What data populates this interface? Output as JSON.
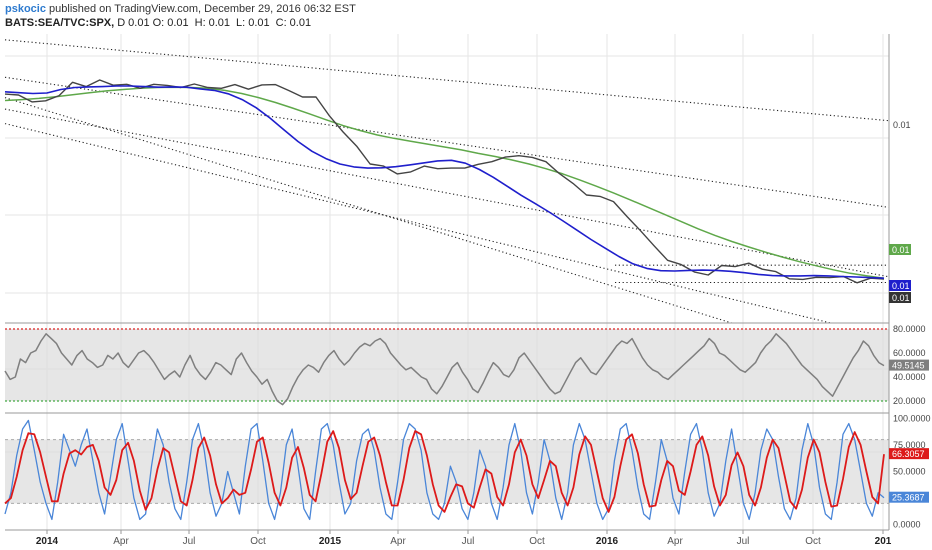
{
  "header": {
    "author": "pskocic",
    "published_text": "published on TradingView.com, December 29, 2016 06:32 EST",
    "symbol": "BATS:SEA/TVC:SPX,",
    "interval": "D",
    "o_label": "O:",
    "o_value": "0.01",
    "h_label": "H:",
    "h_value": "0.01",
    "l_label": "L:",
    "l_value": "0.01",
    "c_label": "C:",
    "c_value": "0.01",
    "open_value": "0.01"
  },
  "x_axis": {
    "labels": [
      "2014",
      "Apr",
      "Jul",
      "Oct",
      "2015",
      "Apr",
      "Jul",
      "Oct",
      "2016",
      "Apr",
      "Jul",
      "Oct",
      "201"
    ],
    "bold": [
      true,
      false,
      false,
      false,
      true,
      false,
      false,
      false,
      true,
      false,
      false,
      false,
      true
    ]
  },
  "colors": {
    "price": "#444444",
    "ma_fast": "#1f1fcc",
    "ma_slow": "#5fa84a",
    "rsi": "#7f7f7f",
    "stoch_k": "#4a86d8",
    "stoch_d": "#dd1a1a",
    "overbought_line": "#dd2222",
    "oversold_line": "#44aa44",
    "grid": "#e6e6e6",
    "band_fill": "#dcdcdc"
  },
  "chart_data": [
    {
      "type": "line",
      "panel": "price",
      "x_ticks": [
        "2014",
        "Apr",
        "Jul",
        "Oct",
        "2015",
        "Apr",
        "Jul",
        "Oct",
        "2016",
        "Apr",
        "Jul",
        "Oct",
        "201"
      ],
      "y_tick_labels": [
        "0.01"
      ],
      "value_badges": [
        {
          "text": "0.01",
          "color": "#5fa84a"
        },
        {
          "text": "0.01",
          "color": "#1f1fcc"
        },
        {
          "text": "0.01",
          "color": "#333333"
        }
      ],
      "series": [
        {
          "name": "price",
          "values": [
            79.2,
            78.9,
            76.5,
            76.9,
            78.7,
            83.3,
            81.8,
            84.1,
            82.3,
            82.6,
            81.2,
            82.6,
            82.2,
            81.5,
            82.7,
            81.5,
            81.2,
            82.5,
            80.9,
            82.4,
            82.5,
            80.4,
            78.2,
            78.2,
            71.6,
            66.1,
            61.2,
            55.0,
            54.3,
            51.6,
            52.3,
            54.3,
            53.4,
            53.6,
            53.6,
            54.9,
            55.8,
            57.4,
            57.9,
            57.3,
            55.8,
            51.7,
            48.3,
            44.3,
            43.8,
            42.0,
            36.8,
            31.9,
            26.7,
            21.7,
            20.2,
            17.6,
            16.6,
            19.9,
            19.5,
            20.7,
            18.6,
            17.8,
            15.3,
            15.1,
            15.8,
            15.7,
            16.1,
            13.9,
            15.5,
            15.2
          ]
        },
        {
          "name": "sma fast",
          "values": [
            80.0,
            79.7,
            79.4,
            79.6,
            80.8,
            81.5,
            81.7,
            81.8,
            82.0,
            82.0,
            81.8,
            81.6,
            81.7,
            81.6,
            81.0,
            80.5,
            79.3,
            77.3,
            74.5,
            70.9,
            66.8,
            62.8,
            59.4,
            56.9,
            55.0,
            54.0,
            53.6,
            53.7,
            54.1,
            54.7,
            55.4,
            56.1,
            56.3,
            55.3,
            53.1,
            50.4,
            47.3,
            44.2,
            41.3,
            38.4,
            35.3,
            32.1,
            28.9,
            25.9,
            23.0,
            20.5,
            18.9,
            18.1,
            18.0,
            18.2,
            18.3,
            18.2,
            17.9,
            17.4,
            16.8,
            16.4,
            16.3,
            16.3,
            16.4,
            16.3,
            16.1,
            15.9,
            15.7,
            15.5
          ]
        },
        {
          "name": "sma slow",
          "values": [
            77.0,
            77.3,
            77.7,
            78.3,
            79.0,
            79.7,
            80.3,
            80.8,
            81.2,
            81.5,
            81.6,
            81.5,
            81.2,
            80.5,
            79.4,
            78.0,
            76.3,
            74.4,
            72.4,
            70.3,
            68.3,
            66.6,
            65.1,
            63.9,
            62.9,
            61.9,
            60.9,
            59.9,
            58.7,
            57.6,
            56.4,
            55.0,
            53.4,
            51.6,
            49.5,
            47.3,
            45.0,
            42.6,
            40.1,
            37.6,
            35.1,
            32.6,
            30.3,
            28.2,
            26.3,
            24.5,
            22.8,
            21.2,
            19.8,
            18.4,
            17.2,
            16.3,
            15.5
          ]
        }
      ],
      "trendlines": [
        {
          "from": [
            0.0,
            98
          ],
          "to": [
            1.0,
            70
          ]
        },
        {
          "from": [
            0.0,
            85
          ],
          "to": [
            1.0,
            40
          ]
        },
        {
          "from": [
            0.0,
            78
          ],
          "to": [
            0.822,
            0
          ]
        },
        {
          "from": [
            0.0,
            74
          ],
          "to": [
            1.0,
            16
          ]
        },
        {
          "from": [
            0.0,
            69
          ],
          "to": [
            0.934,
            0
          ]
        },
        {
          "from": [
            0.69,
            20
          ],
          "to": [
            1.0,
            20
          ]
        },
        {
          "from": [
            0.69,
            14
          ],
          "to": [
            1.0,
            14
          ]
        }
      ]
    },
    {
      "type": "line",
      "panel": "rsi",
      "y_tick_labels": [
        "80.0000",
        "60.0000",
        "40.0000",
        "20.0000"
      ],
      "ylim": [
        10,
        85
      ],
      "overbought": 80,
      "oversold": 20,
      "current_value": "49.5145",
      "series": [
        {
          "name": "rsi",
          "values": [
            45,
            38,
            40,
            55,
            52,
            60,
            62,
            70,
            76,
            72,
            68,
            60,
            55,
            50,
            58,
            62,
            55,
            52,
            48,
            50,
            58,
            55,
            60,
            52,
            48,
            54,
            60,
            62,
            58,
            52,
            45,
            38,
            42,
            45,
            40,
            50,
            58,
            48,
            42,
            38,
            44,
            52,
            50,
            46,
            42,
            55,
            60,
            52,
            45,
            40,
            34,
            38,
            28,
            20,
            17,
            22,
            32,
            40,
            46,
            50,
            48,
            44,
            52,
            58,
            62,
            55,
            50,
            54,
            60,
            65,
            68,
            66,
            70,
            72,
            68,
            60,
            55,
            50,
            46,
            48,
            44,
            40,
            38,
            30,
            26,
            32,
            40,
            48,
            52,
            44,
            38,
            30,
            27,
            35,
            44,
            52,
            48,
            42,
            40,
            46,
            56,
            60,
            54,
            48,
            42,
            36,
            30,
            26,
            28,
            36,
            44,
            52,
            56,
            50,
            44,
            42,
            48,
            54,
            60,
            66,
            70,
            68,
            72,
            64,
            56,
            50,
            46,
            44,
            40,
            38,
            42,
            46,
            50,
            54,
            58,
            62,
            66,
            72,
            68,
            60,
            58,
            54,
            50,
            46,
            44,
            48,
            52,
            60,
            66,
            70,
            76,
            72,
            68,
            62,
            56,
            50,
            46,
            42,
            38,
            32,
            28,
            24,
            32,
            40,
            48,
            56,
            62,
            70,
            66,
            58,
            52,
            49.5
          ]
        }
      ]
    },
    {
      "type": "line",
      "panel": "stochastic",
      "y_tick_labels": [
        "100.0000",
        "75.0000",
        "50.0000",
        "25.0000",
        "0.0000"
      ],
      "ylim": [
        -5,
        105
      ],
      "band": [
        20,
        80
      ],
      "series": [
        {
          "name": "%K",
          "values": [
            10,
            30,
            65,
            90,
            98,
            70,
            40,
            20,
            5,
            40,
            85,
            70,
            55,
            75,
            90,
            60,
            30,
            10,
            45,
            80,
            95,
            60,
            25,
            5,
            10,
            55,
            90,
            75,
            40,
            15,
            5,
            40,
            80,
            95,
            70,
            30,
            8,
            20,
            50,
            30,
            10,
            55,
            90,
            95,
            60,
            20,
            5,
            30,
            75,
            90,
            55,
            15,
            5,
            50,
            90,
            95,
            75,
            40,
            10,
            20,
            60,
            85,
            90,
            70,
            35,
            10,
            5,
            40,
            80,
            95,
            90,
            70,
            30,
            10,
            5,
            20,
            55,
            40,
            15,
            5,
            30,
            70,
            55,
            20,
            5,
            35,
            75,
            95,
            70,
            30,
            10,
            40,
            80,
            60,
            25,
            5,
            30,
            75,
            95,
            80,
            50,
            20,
            5,
            15,
            60,
            90,
            95,
            70,
            35,
            10,
            5,
            40,
            80,
            60,
            25,
            10,
            50,
            85,
            95,
            70,
            30,
            8,
            20,
            60,
            90,
            55,
            20,
            5,
            30,
            70,
            90,
            80,
            45,
            15,
            5,
            25,
            70,
            95,
            75,
            35,
            10,
            5,
            40,
            85,
            95,
            80,
            50,
            20,
            8,
            30,
            25.37
          ]
        },
        {
          "name": "%D",
          "values": [
            20,
            25,
            45,
            70,
            86,
            85,
            68,
            45,
            22,
            22,
            48,
            67,
            70,
            66,
            73,
            75,
            60,
            35,
            28,
            42,
            70,
            77,
            60,
            32,
            14,
            25,
            52,
            72,
            68,
            45,
            22,
            18,
            42,
            72,
            82,
            65,
            38,
            20,
            25,
            33,
            28,
            30,
            52,
            78,
            82,
            58,
            30,
            18,
            35,
            63,
            73,
            53,
            28,
            22,
            48,
            78,
            88,
            72,
            42,
            24,
            30,
            55,
            78,
            82,
            65,
            40,
            18,
            18,
            42,
            72,
            88,
            85,
            65,
            38,
            18,
            12,
            26,
            38,
            36,
            20,
            16,
            35,
            52,
            48,
            26,
            18,
            38,
            68,
            80,
            65,
            38,
            25,
            42,
            60,
            55,
            30,
            18,
            35,
            66,
            83,
            75,
            50,
            25,
            12,
            26,
            55,
            80,
            85,
            67,
            38,
            17,
            18,
            42,
            60,
            55,
            32,
            28,
            50,
            75,
            83,
            65,
            36,
            18,
            28,
            56,
            68,
            55,
            28,
            18,
            35,
            63,
            80,
            72,
            47,
            22,
            15,
            33,
            63,
            80,
            68,
            40,
            17,
            18,
            43,
            73,
            87,
            75,
            50,
            26,
            20,
            66.31
          ]
        }
      ],
      "current_values": [
        "66.3057",
        "25.3687"
      ]
    }
  ]
}
